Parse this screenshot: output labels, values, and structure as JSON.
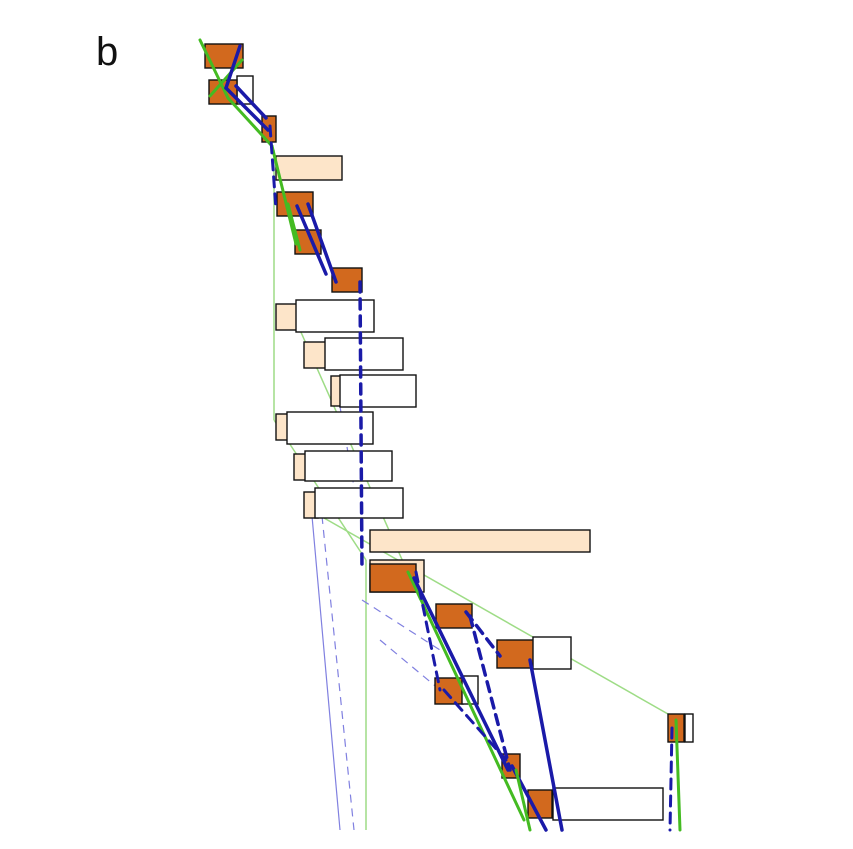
{
  "panel_label": "b",
  "colors": {
    "task_done": "#d2691e",
    "task_outline": "#111111",
    "task_pending": "#fde5c9",
    "task_empty": "#ffffff",
    "critical_link": "#1a1aa8",
    "soft_link": "#8080e0",
    "green_link": "#44bb22",
    "light_green_link": "#9edc86"
  }
}
